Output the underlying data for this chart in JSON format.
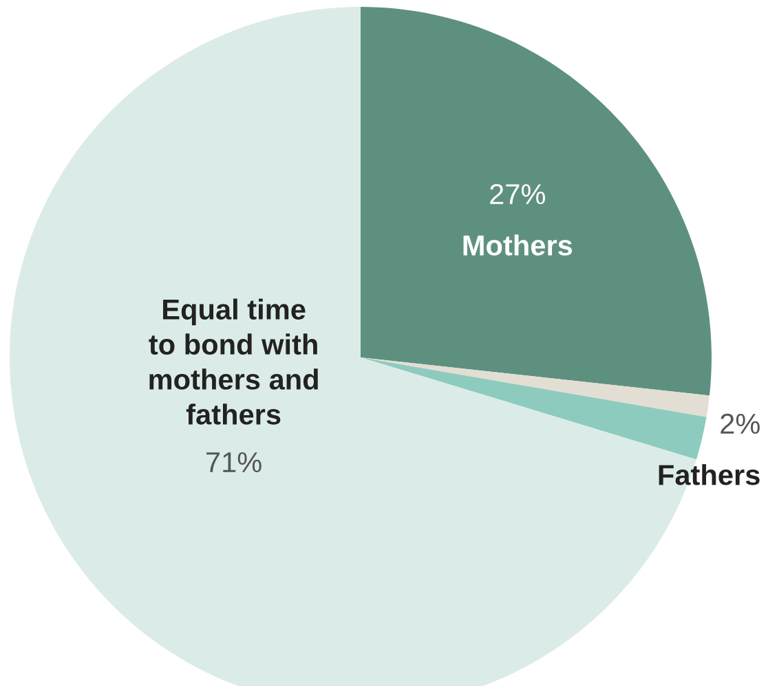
{
  "chart_data": {
    "type": "pie",
    "categories": [
      "Mothers",
      null,
      "Fathers",
      "Equal time\nto bond with\nmothers and\nfathers"
    ],
    "values": [
      27,
      1,
      2,
      71
    ],
    "colors": [
      "#5e9080",
      "#e3ded3",
      "#8ecbbf",
      "#dbece8"
    ],
    "value_labels": [
      "27%",
      null,
      "2%",
      "71%"
    ]
  }
}
